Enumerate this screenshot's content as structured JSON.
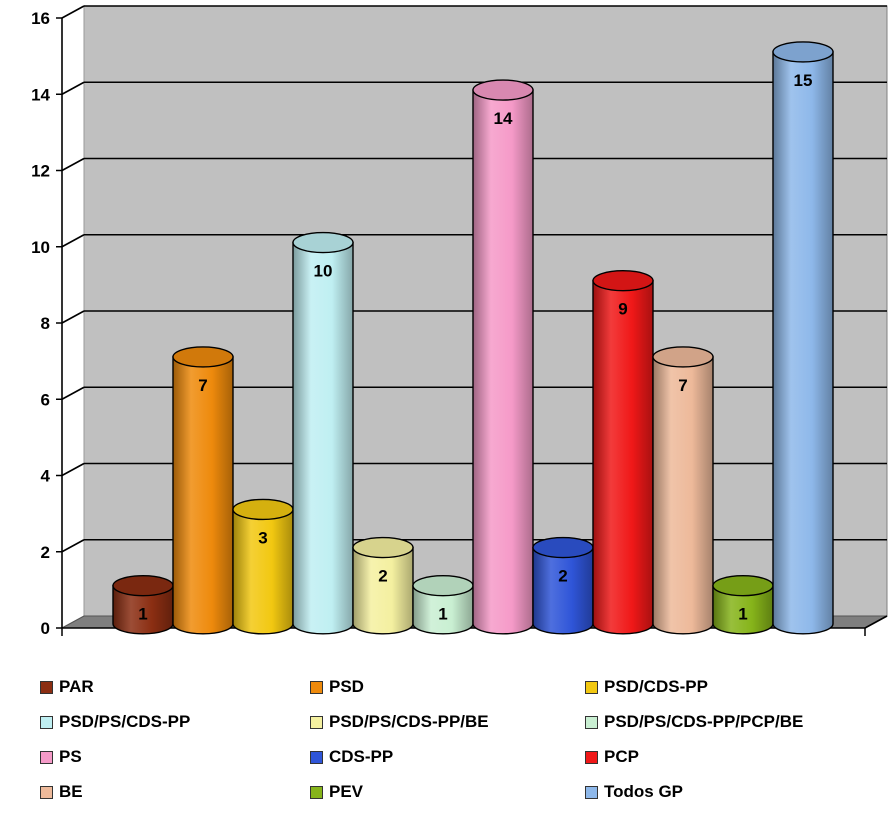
{
  "chart_data": {
    "type": "bar",
    "categories": [
      "PAR",
      "PSD",
      "PSD/CDS-PP",
      "PSD/PS/CDS-PP",
      "PSD/PS/CDS-PP/BE",
      "PSD/PS/CDS-PP/PCP/BE",
      "PS",
      "CDS-PP",
      "PCP",
      "BE",
      "PEV",
      "Todos GP"
    ],
    "values": [
      1,
      7,
      3,
      10,
      2,
      1,
      14,
      2,
      9,
      7,
      1,
      15
    ],
    "colors": [
      "#8B2E12",
      "#EE8A0C",
      "#F2C811",
      "#BFEFF2",
      "#F4F0A0",
      "#C9EFD2",
      "#F59AC8",
      "#2F55D8",
      "#F01818",
      "#EDB99A",
      "#86B41A",
      "#8EB8EA"
    ],
    "ylim": [
      0,
      16
    ],
    "yticks": [
      "0",
      "2",
      "4",
      "6",
      "8",
      "10",
      "12",
      "14",
      "16"
    ],
    "grid": true,
    "legend_position": "bottom",
    "legend": [
      "PAR",
      "PSD",
      "PSD/CDS-PP",
      "PSD/PS/CDS-PP",
      "PSD/PS/CDS-PP/BE",
      "PSD/PS/CDS-PP/PCP/BE",
      "PS",
      "CDS-PP",
      "PCP",
      "BE",
      "PEV",
      "Todos GP"
    ],
    "data_labels": [
      "1",
      "7",
      "3",
      "10",
      "2",
      "1",
      "14",
      "2",
      "9",
      "7",
      "1",
      "15"
    ]
  }
}
